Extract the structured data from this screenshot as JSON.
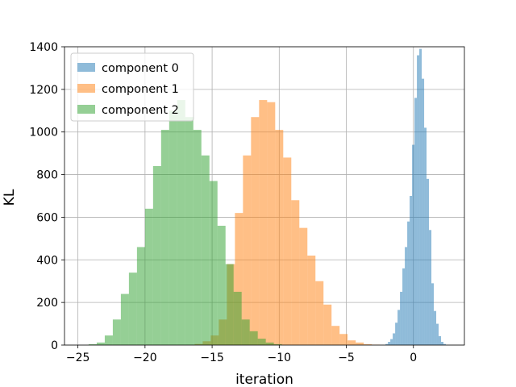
{
  "chart_data": {
    "type": "histogram",
    "xlabel": "iteration",
    "ylabel": "KL",
    "xlim": [
      -26,
      3.8
    ],
    "ylim": [
      0,
      1400
    ],
    "xticks": [
      -25,
      -20,
      -15,
      -10,
      -5,
      0
    ],
    "yticks": [
      0,
      200,
      400,
      600,
      800,
      1000,
      1200,
      1400
    ],
    "grid": true,
    "legend_position": "top-left",
    "series": [
      {
        "name": "component 0",
        "color": "#1f77b4",
        "bin_width": 0.18,
        "bins": [
          [
            -2.08,
            5
          ],
          [
            -1.9,
            15
          ],
          [
            -1.72,
            28
          ],
          [
            -1.54,
            55
          ],
          [
            -1.36,
            105
          ],
          [
            -1.18,
            165
          ],
          [
            -1.0,
            250
          ],
          [
            -0.82,
            360
          ],
          [
            -0.64,
            460
          ],
          [
            -0.46,
            580
          ],
          [
            -0.28,
            700
          ],
          [
            -0.1,
            940
          ],
          [
            0.08,
            1160
          ],
          [
            0.26,
            1360
          ],
          [
            0.44,
            1390
          ],
          [
            0.62,
            1250
          ],
          [
            0.8,
            1020
          ],
          [
            0.98,
            780
          ],
          [
            1.16,
            540
          ],
          [
            1.34,
            290
          ],
          [
            1.52,
            160
          ],
          [
            1.7,
            100
          ],
          [
            1.88,
            42
          ],
          [
            2.06,
            15
          ],
          [
            2.24,
            5
          ]
        ]
      },
      {
        "name": "component 1",
        "color": "#ff7f0e",
        "bin_width": 0.6,
        "bins": [
          [
            -16.3,
            5
          ],
          [
            -15.7,
            18
          ],
          [
            -15.1,
            45
          ],
          [
            -14.5,
            120
          ],
          [
            -13.9,
            380
          ],
          [
            -13.3,
            620
          ],
          [
            -12.7,
            890
          ],
          [
            -12.1,
            1070
          ],
          [
            -11.5,
            1150
          ],
          [
            -10.9,
            1140
          ],
          [
            -10.3,
            1010
          ],
          [
            -9.7,
            880
          ],
          [
            -9.1,
            680
          ],
          [
            -8.5,
            550
          ],
          [
            -7.9,
            420
          ],
          [
            -7.3,
            300
          ],
          [
            -6.7,
            190
          ],
          [
            -6.1,
            90
          ],
          [
            -5.5,
            52
          ],
          [
            -4.9,
            22
          ],
          [
            -4.3,
            12
          ],
          [
            -3.7,
            4
          ],
          [
            -3.1,
            2
          ]
        ]
      },
      {
        "name": "component 2",
        "color": "#2ca02c",
        "bin_width": 0.6,
        "bins": [
          [
            -24.2,
            4
          ],
          [
            -23.6,
            12
          ],
          [
            -23.0,
            45
          ],
          [
            -22.4,
            120
          ],
          [
            -21.8,
            240
          ],
          [
            -21.2,
            340
          ],
          [
            -20.6,
            460
          ],
          [
            -20.0,
            640
          ],
          [
            -19.4,
            840
          ],
          [
            -18.8,
            1010
          ],
          [
            -18.2,
            1100
          ],
          [
            -17.6,
            1150
          ],
          [
            -17.0,
            1070
          ],
          [
            -16.4,
            1010
          ],
          [
            -15.8,
            890
          ],
          [
            -15.2,
            770
          ],
          [
            -14.6,
            560
          ],
          [
            -14.0,
            380
          ],
          [
            -13.4,
            250
          ],
          [
            -12.8,
            120
          ],
          [
            -12.2,
            65
          ],
          [
            -11.6,
            30
          ],
          [
            -11.0,
            12
          ],
          [
            -10.4,
            4
          ]
        ]
      }
    ]
  }
}
